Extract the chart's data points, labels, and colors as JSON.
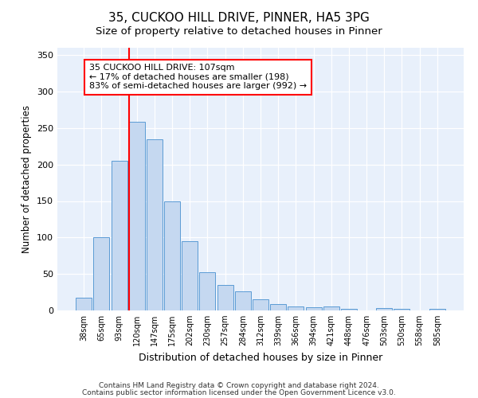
{
  "title1": "35, CUCKOO HILL DRIVE, PINNER, HA5 3PG",
  "title2": "Size of property relative to detached houses in Pinner",
  "xlabel": "Distribution of detached houses by size in Pinner",
  "ylabel": "Number of detached properties",
  "categories": [
    "38sqm",
    "65sqm",
    "93sqm",
    "120sqm",
    "147sqm",
    "175sqm",
    "202sqm",
    "230sqm",
    "257sqm",
    "284sqm",
    "312sqm",
    "339sqm",
    "366sqm",
    "394sqm",
    "421sqm",
    "448sqm",
    "476sqm",
    "503sqm",
    "530sqm",
    "558sqm",
    "585sqm"
  ],
  "values": [
    18,
    100,
    205,
    258,
    235,
    150,
    95,
    52,
    35,
    26,
    15,
    9,
    6,
    4,
    5,
    2,
    0,
    3,
    2,
    0,
    2
  ],
  "bar_color": "#c5d8f0",
  "bar_edge_color": "#5b9bd5",
  "vline_x_index": 3,
  "vline_color": "red",
  "annotation_text": "35 CUCKOO HILL DRIVE: 107sqm\n← 17% of detached houses are smaller (198)\n83% of semi-detached houses are larger (992) →",
  "annotation_box_color": "white",
  "annotation_box_edge_color": "red",
  "ylim": [
    0,
    360
  ],
  "yticks": [
    0,
    50,
    100,
    150,
    200,
    250,
    300,
    350
  ],
  "footer1": "Contains HM Land Registry data © Crown copyright and database right 2024.",
  "footer2": "Contains public sector information licensed under the Open Government Licence v3.0.",
  "plot_bg_color": "#e8f0fb",
  "title1_fontsize": 11,
  "title2_fontsize": 9.5,
  "bar_width": 0.9
}
